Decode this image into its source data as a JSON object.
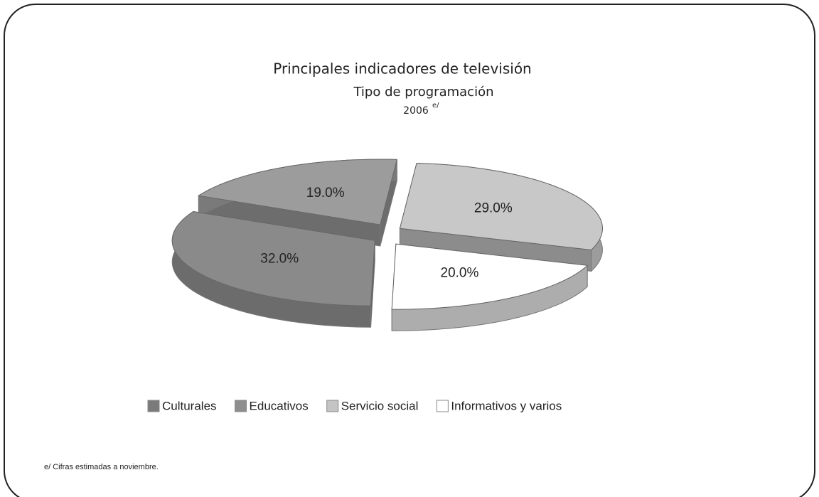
{
  "chart_data": {
    "type": "pie3d",
    "title": "Principales indicadores de televisión",
    "subtitle": "Tipo de programación",
    "year": "2006",
    "year_note": "e/",
    "footnote": "e/ Cifras estimadas a noviembre.",
    "categories": [
      "Culturales",
      "Educativos",
      "Servicio social",
      "Informativos y varios"
    ],
    "values": [
      32,
      19,
      29,
      20
    ],
    "value_labels": [
      "32.0%",
      "19.0%",
      "29.0%",
      "20.0%"
    ],
    "colors": [
      "#8a8a8a",
      "#9c9c9c",
      "#c8c8c8",
      "#ffffff"
    ],
    "legend_colors": [
      "#7a7a7a",
      "#8e8e8e",
      "#c4c4c4",
      "#ffffff"
    ],
    "legend": "bottom"
  }
}
